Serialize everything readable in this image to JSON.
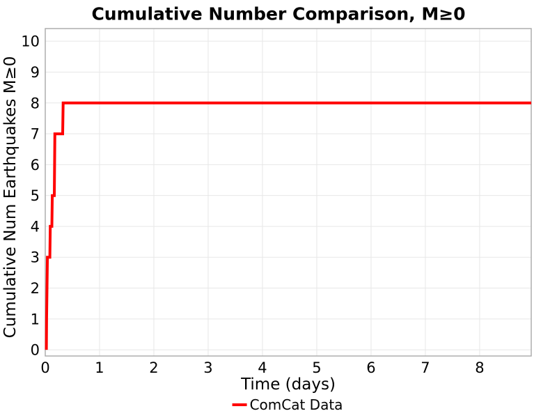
{
  "colors": {
    "line": "#ff0000",
    "grid": "#e7e7e7",
    "spine": "#a9a9a9",
    "text": "#000000",
    "background": "#ffffff"
  },
  "legend": {
    "position": "bottom-center",
    "items": [
      {
        "label": "ComCat Data",
        "color": "#ff0000"
      }
    ]
  },
  "chart_data": {
    "type": "line",
    "title": "Cumulative Number Comparison, M≥0",
    "xlabel": "Time (days)",
    "ylabel": "Cumulative Num Earthquakes M≥0",
    "xlim": [
      0,
      8.95
    ],
    "ylim": [
      -0.2,
      10.41
    ],
    "grid": true,
    "legend_position": "bottom-center",
    "x_ticks": [
      0,
      1,
      2,
      3,
      4,
      5,
      6,
      7,
      8
    ],
    "y_ticks": [
      0,
      1,
      2,
      3,
      4,
      5,
      6,
      7,
      8,
      9,
      10
    ],
    "series": [
      {
        "name": "ComCat Data",
        "color": "#ff0000",
        "line_width": 4,
        "points": [
          [
            0.02,
            0
          ],
          [
            0.025,
            1
          ],
          [
            0.032,
            2
          ],
          [
            0.04,
            3
          ],
          [
            0.085,
            3
          ],
          [
            0.092,
            4
          ],
          [
            0.122,
            4
          ],
          [
            0.13,
            5
          ],
          [
            0.167,
            5
          ],
          [
            0.172,
            6
          ],
          [
            0.177,
            7
          ],
          [
            0.32,
            7
          ],
          [
            0.33,
            8
          ],
          [
            8.95,
            8
          ]
        ]
      }
    ]
  }
}
